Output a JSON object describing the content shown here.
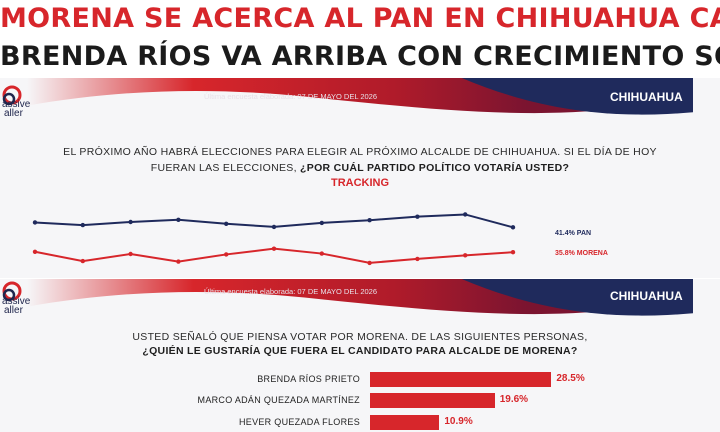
{
  "headline": {
    "line1": "MORENA SE ACERCA AL PAN EN CHIHUAHUA CAPITAL",
    "line2": "BRENDA RÍOS VA ARRIBA CON CRECIMIENTO SOSTENIDO"
  },
  "brand": {
    "name_line1": "assive",
    "name_line2": "aller"
  },
  "top_panel": {
    "survey_date": "Última encuesta elaborada: 07 DE MAYO DEL 2026",
    "region": "CHIHUAHUA",
    "question_line1": "EL PRÓXIMO AÑO HABRÁ ELECCIONES PARA ELEGIR AL PRÓXIMO ALCALDE DE CHIHUAHUA. SI EL DÍA DE HOY",
    "question_line2_plain": "FUERAN LAS ELECCIONES, ",
    "question_line2_bold": "¿POR CUÁL PARTIDO POLÍTICO VOTARÍA USTED?",
    "chart_title": "TRACKING"
  },
  "bottom_panel": {
    "survey_date": "Última encuesta elaborada: 07 DE MAYO DEL 2026",
    "region": "CHIHUAHUA",
    "question_line1": "USTED SEÑALÓ QUE PIENSA VOTAR POR MORENA. DE LAS SIGUIENTES PERSONAS,",
    "question_line2": "¿QUIÉN LE GUSTARÍA QUE FUERA EL CANDIDATO PARA ALCALDE DE MORENA?"
  },
  "colors": {
    "red": "#d7262b",
    "navy": "#1f2a5c"
  },
  "chart_data": [
    {
      "type": "line",
      "title": "TRACKING",
      "x": [
        1,
        2,
        3,
        4,
        5,
        6,
        7,
        8,
        9,
        10,
        11
      ],
      "ylim": [
        30,
        48
      ],
      "grid": false,
      "series": [
        {
          "name": "PAN",
          "label": "41.4% PAN",
          "color": "#1f2a5c",
          "values": [
            42.5,
            41.9,
            42.6,
            43.1,
            42.2,
            41.5,
            42.4,
            43.0,
            43.8,
            44.3,
            41.4
          ]
        },
        {
          "name": "MORENA",
          "label": "35.8% MORENA",
          "color": "#d7262b",
          "values": [
            35.9,
            33.8,
            35.4,
            33.7,
            35.3,
            36.6,
            35.5,
            33.4,
            34.3,
            35.1,
            35.8
          ]
        }
      ]
    },
    {
      "type": "bar",
      "orientation": "horizontal",
      "categories": [
        "BRENDA RÍOS PRIETO",
        "MARCO ADÁN QUEZADA MARTÍNEZ",
        "HEVER QUEZADA FLORES"
      ],
      "values": [
        28.5,
        19.6,
        10.9
      ],
      "value_labels": [
        "28.5%",
        "19.6%",
        "10.9%"
      ],
      "xlim": [
        0,
        55
      ]
    }
  ]
}
